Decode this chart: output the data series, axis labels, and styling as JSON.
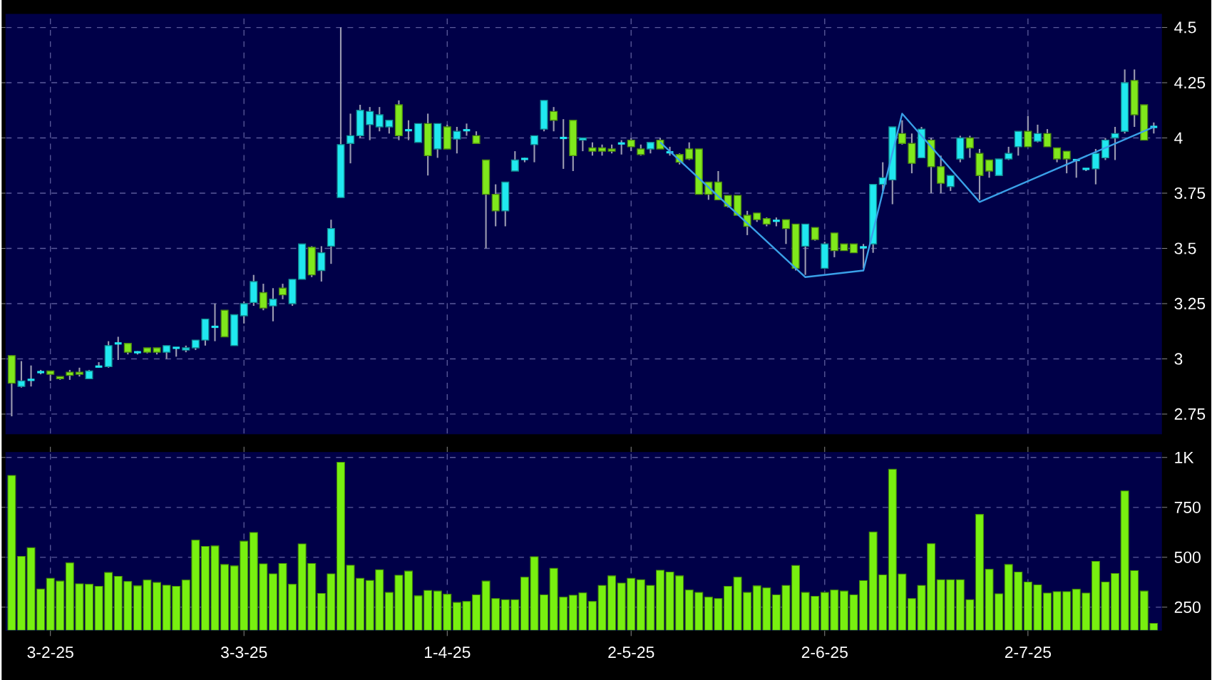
{
  "chart_data": [
    {
      "type": "candlestick",
      "tick_labels": "y",
      "grid": true,
      "categories": [
        null,
        null,
        null,
        null,
        null,
        null,
        null,
        null,
        null,
        null,
        null,
        null,
        null,
        null,
        null,
        null,
        null,
        null,
        null,
        null,
        null,
        null,
        null,
        null,
        null,
        null,
        null,
        null,
        null,
        null,
        null,
        null,
        null,
        null,
        null,
        null,
        null,
        null,
        null,
        null,
        null,
        null,
        null,
        null,
        null,
        null,
        null,
        null,
        null,
        null,
        null,
        null,
        null,
        null,
        null,
        null,
        null,
        null,
        null,
        null,
        null,
        null,
        null,
        null,
        null,
        null,
        null,
        null,
        null,
        null,
        null,
        null,
        null,
        null,
        null,
        null,
        null,
        null,
        null,
        null,
        null,
        null,
        null,
        null,
        null,
        null,
        null,
        null,
        null,
        null,
        null,
        null,
        null,
        null,
        null,
        null,
        null,
        null,
        null,
        null,
        null,
        null,
        null,
        null,
        null,
        null,
        null,
        null,
        null,
        null,
        null,
        null,
        null,
        null,
        null,
        null,
        null,
        null,
        null
      ],
      "ylim": [
        2.66,
        4.56
      ],
      "yticks": [
        2.75,
        3,
        3.25,
        3.5,
        3.75,
        4,
        4.25,
        4.5
      ],
      "ohlc": [
        [
          3.015,
          3.015,
          2.74,
          2.89
        ],
        [
          2.875,
          2.99,
          2.87,
          2.9
        ],
        [
          2.905,
          2.97,
          2.875,
          2.905
        ],
        [
          2.94,
          2.95,
          2.93,
          2.94
        ],
        [
          2.945,
          2.945,
          2.9,
          2.93
        ],
        [
          2.92,
          2.92,
          2.905,
          2.91
        ],
        [
          2.94,
          2.95,
          2.905,
          2.925
        ],
        [
          2.94,
          2.96,
          2.92,
          2.93
        ],
        [
          2.91,
          2.95,
          2.91,
          2.945
        ],
        [
          2.965,
          2.985,
          2.96,
          2.965
        ],
        [
          2.965,
          3.08,
          2.96,
          3.06
        ],
        [
          3.07,
          3.1,
          2.995,
          3.07
        ],
        [
          3.07,
          3.07,
          3.02,
          3.03
        ],
        [
          3.03,
          3.035,
          3.02,
          3.03
        ],
        [
          3.05,
          3.05,
          3.025,
          3.03
        ],
        [
          3.05,
          3.05,
          3.02,
          3.03
        ],
        [
          3.03,
          3.06,
          3.0,
          3.06
        ],
        [
          3.05,
          3.05,
          3.01,
          3.05
        ],
        [
          3.04,
          3.06,
          3.03,
          3.05
        ],
        [
          3.05,
          3.085,
          3.04,
          3.085
        ],
        [
          3.085,
          3.18,
          3.06,
          3.18
        ],
        [
          3.145,
          3.25,
          3.08,
          3.145
        ],
        [
          3.22,
          3.22,
          3.1,
          3.1
        ],
        [
          3.06,
          3.2,
          3.06,
          3.2
        ],
        [
          3.195,
          3.26,
          3.16,
          3.25
        ],
        [
          3.255,
          3.38,
          3.24,
          3.35
        ],
        [
          3.3,
          3.34,
          3.22,
          3.23
        ],
        [
          3.24,
          3.32,
          3.17,
          3.27
        ],
        [
          3.32,
          3.34,
          3.27,
          3.29
        ],
        [
          3.25,
          3.36,
          3.24,
          3.36
        ],
        [
          3.36,
          3.52,
          3.36,
          3.52
        ],
        [
          3.505,
          3.51,
          3.37,
          3.38
        ],
        [
          3.4,
          3.51,
          3.35,
          3.48
        ],
        [
          3.51,
          3.63,
          3.43,
          3.59
        ],
        [
          3.73,
          4.5,
          3.73,
          3.97
        ],
        [
          3.975,
          4.11,
          3.885,
          4.01
        ],
        [
          4.01,
          4.15,
          4.0,
          4.125
        ],
        [
          4.06,
          4.14,
          3.99,
          4.12
        ],
        [
          4.05,
          4.14,
          4.03,
          4.105
        ],
        [
          4.05,
          4.08,
          4.02,
          4.08
        ],
        [
          4.15,
          4.17,
          3.99,
          4.01
        ],
        [
          4.035,
          4.08,
          3.99,
          4.035
        ],
        [
          3.98,
          4.065,
          3.98,
          4.065
        ],
        [
          4.065,
          4.11,
          3.83,
          3.92
        ],
        [
          3.95,
          4.065,
          3.91,
          4.065
        ],
        [
          4.05,
          4.06,
          3.95,
          3.95
        ],
        [
          3.995,
          4.05,
          3.93,
          4.03
        ],
        [
          4.035,
          4.065,
          4.01,
          4.035
        ],
        [
          4.01,
          4.03,
          3.975,
          3.975
        ],
        [
          3.9,
          3.9,
          3.5,
          3.745
        ],
        [
          3.745,
          3.79,
          3.6,
          3.67
        ],
        [
          3.67,
          3.8,
          3.6,
          3.8
        ],
        [
          3.85,
          3.94,
          3.85,
          3.9
        ],
        [
          3.905,
          3.91,
          3.89,
          3.905
        ],
        [
          3.97,
          4.01,
          3.89,
          4.01
        ],
        [
          4.04,
          4.17,
          4.03,
          4.17
        ],
        [
          4.12,
          4.14,
          4.03,
          4.08
        ],
        [
          4.0,
          4.085,
          3.86,
          4.0
        ],
        [
          4.08,
          4.08,
          3.85,
          3.92
        ],
        [
          3.99,
          4.0,
          3.94,
          4.0
        ],
        [
          3.955,
          3.98,
          3.92,
          3.94
        ],
        [
          3.955,
          3.97,
          3.92,
          3.94
        ],
        [
          3.95,
          3.97,
          3.93,
          3.94
        ],
        [
          3.975,
          3.99,
          3.925,
          3.975
        ],
        [
          3.99,
          4.0,
          3.94,
          3.96
        ],
        [
          3.95,
          3.97,
          3.92,
          3.925
        ],
        [
          3.95,
          3.98,
          3.93,
          3.98
        ],
        [
          3.99,
          4.0,
          3.95,
          3.95
        ],
        [
          3.935,
          3.96,
          3.92,
          3.935
        ],
        [
          3.925,
          3.93,
          3.88,
          3.89
        ],
        [
          3.95,
          3.98,
          3.9,
          3.905
        ],
        [
          3.95,
          3.95,
          3.745,
          3.745
        ],
        [
          3.8,
          3.8,
          3.72,
          3.745
        ],
        [
          3.8,
          3.85,
          3.72,
          3.72
        ],
        [
          3.74,
          3.74,
          3.685,
          3.69
        ],
        [
          3.74,
          3.74,
          3.65,
          3.65
        ],
        [
          3.65,
          3.67,
          3.56,
          3.6
        ],
        [
          3.66,
          3.66,
          3.62,
          3.63
        ],
        [
          3.635,
          3.64,
          3.6,
          3.61
        ],
        [
          3.625,
          3.64,
          3.6,
          3.625
        ],
        [
          3.63,
          3.63,
          3.52,
          3.59
        ],
        [
          3.61,
          3.61,
          3.4,
          3.41
        ],
        [
          3.51,
          3.61,
          3.38,
          3.61
        ],
        [
          3.595,
          3.595,
          3.535,
          3.54
        ],
        [
          3.41,
          3.53,
          3.41,
          3.52
        ],
        [
          3.57,
          3.57,
          3.46,
          3.49
        ],
        [
          3.52,
          3.52,
          3.49,
          3.49
        ],
        [
          3.52,
          3.52,
          3.48,
          3.48
        ],
        [
          3.505,
          3.52,
          3.41,
          3.505
        ],
        [
          3.52,
          3.79,
          3.48,
          3.79
        ],
        [
          3.79,
          3.89,
          3.76,
          3.82
        ],
        [
          3.81,
          4.05,
          3.7,
          4.05
        ],
        [
          4.02,
          4.08,
          3.97,
          3.975
        ],
        [
          3.975,
          4.02,
          3.84,
          3.885
        ],
        [
          3.91,
          4.05,
          3.91,
          4.04
        ],
        [
          3.99,
          4.0,
          3.75,
          3.87
        ],
        [
          3.87,
          3.92,
          3.75,
          3.795
        ],
        [
          3.78,
          3.83,
          3.76,
          3.83
        ],
        [
          3.905,
          4.01,
          3.89,
          4.0
        ],
        [
          4.0,
          4.01,
          3.91,
          3.955
        ],
        [
          3.93,
          3.95,
          3.72,
          3.83
        ],
        [
          3.9,
          3.9,
          3.82,
          3.85
        ],
        [
          3.83,
          3.905,
          3.83,
          3.905
        ],
        [
          3.905,
          3.96,
          3.9,
          3.93
        ],
        [
          3.96,
          4.03,
          3.92,
          4.03
        ],
        [
          4.03,
          4.1,
          3.96,
          3.96
        ],
        [
          3.985,
          4.06,
          3.98,
          4.02
        ],
        [
          4.02,
          4.04,
          3.96,
          3.96
        ],
        [
          3.955,
          3.955,
          3.89,
          3.905
        ],
        [
          3.94,
          3.94,
          3.84,
          3.905
        ],
        [
          3.9,
          3.9,
          3.82,
          3.9
        ],
        [
          3.86,
          3.86,
          3.85,
          3.86
        ],
        [
          3.86,
          3.95,
          3.79,
          3.93
        ],
        [
          3.91,
          4.0,
          3.9,
          3.99
        ],
        [
          4.0,
          4.05,
          3.9,
          4.02
        ],
        [
          4.03,
          4.31,
          4.02,
          4.25
        ],
        [
          4.26,
          4.31,
          4.05,
          4.105
        ],
        [
          4.15,
          4.15,
          3.99,
          3.99
        ],
        [
          4.05,
          4.07,
          4.02,
          4.05
        ]
      ],
      "colors": [
        "#80e81c",
        "#20e8f0",
        "#20e8f0",
        "#20e8f0",
        "#80e81c",
        "#80e81c",
        "#80e81c",
        "#80e81c",
        "#20e8f0",
        "#20e8f0",
        "#20e8f0",
        "#20e8f0",
        "#80e81c",
        "#20e8f0",
        "#80e81c",
        "#80e81c",
        "#20e8f0",
        "#20e8f0",
        "#20e8f0",
        "#20e8f0",
        "#20e8f0",
        "#20e8f0",
        "#80e81c",
        "#20e8f0",
        "#20e8f0",
        "#20e8f0",
        "#80e81c",
        "#20e8f0",
        "#80e81c",
        "#20e8f0",
        "#20e8f0",
        "#80e81c",
        "#20e8f0",
        "#20e8f0",
        "#20e8f0",
        "#20e8f0",
        "#20e8f0",
        "#20e8f0",
        "#20e8f0",
        "#20e8f0",
        "#80e81c",
        "#20e8f0",
        "#20e8f0",
        "#80e81c",
        "#20e8f0",
        "#80e81c",
        "#20e8f0",
        "#20e8f0",
        "#80e81c",
        "#80e81c",
        "#80e81c",
        "#20e8f0",
        "#20e8f0",
        "#20e8f0",
        "#20e8f0",
        "#20e8f0",
        "#80e81c",
        "#20e8f0",
        "#80e81c",
        "#20e8f0",
        "#80e81c",
        "#80e81c",
        "#80e81c",
        "#20e8f0",
        "#80e81c",
        "#80e81c",
        "#20e8f0",
        "#80e81c",
        "#20e8f0",
        "#80e81c",
        "#80e81c",
        "#80e81c",
        "#80e81c",
        "#80e81c",
        "#80e81c",
        "#80e81c",
        "#80e81c",
        "#80e81c",
        "#80e81c",
        "#20e8f0",
        "#80e81c",
        "#80e81c",
        "#20e8f0",
        "#80e81c",
        "#20e8f0",
        "#80e81c",
        "#80e81c",
        "#80e81c",
        "#20e8f0",
        "#20e8f0",
        "#20e8f0",
        "#20e8f0",
        "#80e81c",
        "#80e81c",
        "#20e8f0",
        "#80e81c",
        "#80e81c",
        "#20e8f0",
        "#20e8f0",
        "#80e81c",
        "#80e81c",
        "#80e81c",
        "#20e8f0",
        "#20e8f0",
        "#20e8f0",
        "#80e81c",
        "#20e8f0",
        "#80e81c",
        "#80e81c",
        "#80e81c",
        "#20e8f0",
        "#20e8f0",
        "#20e8f0",
        "#20e8f0",
        "#20e8f0",
        "#20e8f0",
        "#80e81c",
        "#80e81c",
        "#20e8f0"
      ],
      "series": [
        {
          "type": "line",
          "color": "#3aa0e8",
          "values": [
            null,
            null,
            null,
            null,
            null,
            null,
            null,
            null,
            null,
            null,
            null,
            null,
            null,
            null,
            null,
            null,
            null,
            null,
            null,
            null,
            null,
            null,
            null,
            null,
            null,
            null,
            null,
            null,
            null,
            null,
            null,
            null,
            null,
            null,
            null,
            null,
            null,
            null,
            null,
            null,
            null,
            null,
            null,
            null,
            null,
            null,
            null,
            null,
            null,
            null,
            null,
            null,
            null,
            null,
            null,
            null,
            null,
            null,
            null,
            null,
            null,
            null,
            null,
            null,
            null,
            null,
            null,
            3.98,
            null,
            null,
            null,
            null,
            null,
            null,
            null,
            null,
            null,
            null,
            null,
            null,
            null,
            null,
            3.37,
            null,
            null,
            null,
            null,
            null,
            3.4,
            null,
            null,
            null,
            4.11,
            null,
            null,
            null,
            null,
            null,
            null,
            null,
            3.71,
            null,
            null,
            null,
            null,
            null,
            null,
            null,
            null,
            null,
            null,
            null,
            null,
            null,
            null,
            null,
            null,
            null,
            4.05
          ]
        }
      ]
    },
    {
      "type": "bar",
      "grid": true,
      "color": "#78f010",
      "categories": [
        null,
        null,
        null,
        null,
        "3-2-25",
        null,
        null,
        null,
        null,
        null,
        null,
        null,
        null,
        null,
        null,
        null,
        null,
        null,
        null,
        null,
        null,
        null,
        null,
        null,
        "3-3-25",
        null,
        null,
        null,
        null,
        null,
        null,
        null,
        null,
        null,
        null,
        null,
        null,
        null,
        null,
        null,
        null,
        null,
        null,
        null,
        null,
        "1-4-25",
        null,
        null,
        null,
        null,
        null,
        null,
        null,
        null,
        null,
        null,
        null,
        null,
        null,
        null,
        null,
        null,
        null,
        null,
        "2-5-25",
        null,
        null,
        null,
        null,
        null,
        null,
        null,
        null,
        null,
        null,
        null,
        null,
        null,
        null,
        null,
        null,
        null,
        null,
        null,
        "2-6-25",
        null,
        null,
        null,
        null,
        null,
        null,
        null,
        null,
        null,
        null,
        null,
        null,
        null,
        null,
        null,
        null,
        null,
        null,
        null,
        null,
        "2-7-25",
        null,
        null,
        null,
        null,
        null,
        null,
        null,
        null,
        null,
        null,
        null,
        null,
        null
      ],
      "ylim": [
        134,
        1025
      ],
      "yticks": [
        250,
        500,
        750,
        {
          "value": 1000,
          "label": "1K"
        }
      ],
      "values": [
        910,
        505,
        548,
        341,
        395,
        381,
        472,
        367,
        365,
        355,
        424,
        405,
        379,
        357,
        386,
        374,
        360,
        355,
        386,
        586,
        555,
        557,
        464,
        457,
        581,
        624,
        467,
        417,
        469,
        365,
        567,
        469,
        319,
        417,
        976,
        460,
        395,
        384,
        438,
        324,
        410,
        431,
        307,
        334,
        331,
        315,
        274,
        279,
        312,
        381,
        293,
        288,
        288,
        400,
        503,
        312,
        445,
        300,
        310,
        322,
        279,
        359,
        407,
        371,
        395,
        388,
        359,
        435,
        426,
        407,
        336,
        324,
        300,
        293,
        355,
        400,
        324,
        357,
        347,
        312,
        359,
        459,
        324,
        305,
        324,
        336,
        331,
        312,
        383,
        627,
        412,
        941,
        416,
        293,
        359,
        568,
        388,
        388,
        388,
        288,
        715,
        440,
        317,
        464,
        426,
        376,
        362,
        321,
        328,
        328,
        340,
        321,
        480,
        376,
        419,
        832,
        433,
        331,
        169
      ]
    }
  ]
}
